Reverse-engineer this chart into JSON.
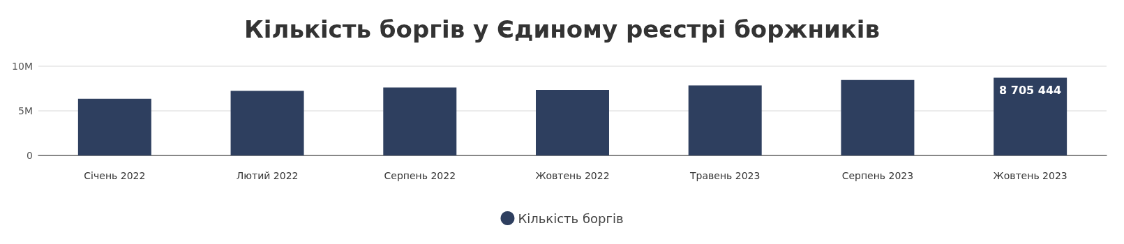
{
  "chart_data": {
    "type": "bar",
    "title": "Кількість боргів у Єдиному реєстрі боржників",
    "categories": [
      "Січень 2022",
      "Лютий 2022",
      "Серпень 2022",
      "Жовтень 2022",
      "Травень 2023",
      "Серпень 2023",
      "Жовтень 2023"
    ],
    "series": [
      {
        "name": "Кількість боргів",
        "color": "#2e3f5f",
        "values": [
          6350000,
          7250000,
          7620000,
          7350000,
          7850000,
          8450000,
          8705444
        ],
        "value_labels": [
          null,
          null,
          null,
          null,
          null,
          null,
          "8 705 444"
        ]
      }
    ],
    "ylim": [
      0,
      10000000
    ],
    "yticks": [
      {
        "value": 0,
        "label": "0"
      },
      {
        "value": 5000000,
        "label": "5M"
      },
      {
        "value": 10000000,
        "label": "10M"
      }
    ],
    "grid": "y",
    "legend": "bottom"
  }
}
